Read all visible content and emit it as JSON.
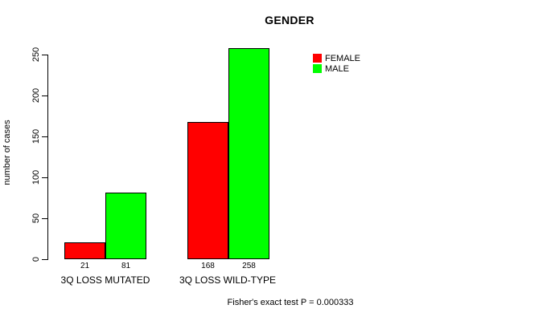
{
  "chart_data": {
    "type": "bar",
    "title": "GENDER",
    "ylabel": "number of cases",
    "xlabel": "",
    "categories": [
      "3Q LOSS MUTATED",
      "3Q LOSS WILD-TYPE"
    ],
    "series": [
      {
        "name": "FEMALE",
        "color": "#ff0000",
        "values": [
          21,
          168
        ]
      },
      {
        "name": "MALE",
        "color": "#00ff00",
        "values": [
          81,
          258
        ]
      }
    ],
    "yticks": [
      0,
      50,
      100,
      150,
      200,
      250
    ],
    "ylim": [
      0,
      260
    ],
    "grid": false,
    "legend_position": "top-right",
    "bar_border_color": "#000000",
    "annotation": "Fisher's exact test P = 0.000333"
  }
}
